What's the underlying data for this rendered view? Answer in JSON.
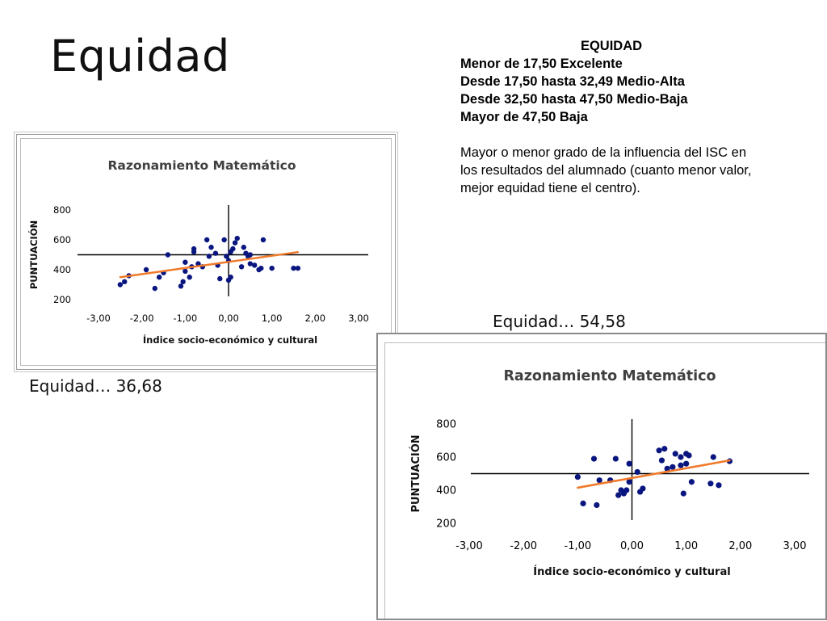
{
  "slide": {
    "title": "Equidad"
  },
  "legend": {
    "title": "EQUIDAD",
    "lines": [
      "Menor de 17,50 Excelente",
      "Desde 17,50 hasta 32,49 Medio-Alta",
      "Desde 32,50 hasta 47,50 Medio-Baja",
      "Mayor de 47,50 Baja"
    ],
    "note": "Mayor o menor grado de la influencia del ISC en los resultados del alumnado (cuanto menor valor, mejor equidad tiene el centro)."
  },
  "results": {
    "chart1_label": "Equidad…  36,68",
    "chart2_label": "Equidad… 54,58"
  },
  "colors": {
    "points": "#0a1680",
    "trendline": "#f07a2a",
    "axis": "#000000"
  },
  "chart_data": [
    {
      "type": "scatter",
      "title": "Razonamiento Matemático",
      "xlabel": "Índice socio-económico y cultural",
      "ylabel": "PUNTUACIÓN",
      "xlim": [
        -3,
        3
      ],
      "ylim": [
        200,
        800
      ],
      "x_ticks": [
        "-3,00",
        "-2,00",
        "-1,00",
        "0,00",
        "1,00",
        "2,00",
        "3,00"
      ],
      "y_ticks": [
        "200",
        "400",
        "600",
        "800"
      ],
      "x_axis_crosses_y_at": 500,
      "trendline": {
        "x": [
          -2.5,
          1.6
        ],
        "y": [
          350,
          518
        ]
      },
      "points": [
        [
          -2.5,
          300
        ],
        [
          -2.4,
          320
        ],
        [
          -2.3,
          360
        ],
        [
          -1.9,
          400
        ],
        [
          -1.7,
          275
        ],
        [
          -1.6,
          350
        ],
        [
          -1.5,
          380
        ],
        [
          -1.4,
          500
        ],
        [
          -1.1,
          290
        ],
        [
          -1.05,
          320
        ],
        [
          -1.0,
          450
        ],
        [
          -1.0,
          390
        ],
        [
          -0.9,
          350
        ],
        [
          -0.85,
          420
        ],
        [
          -0.8,
          520
        ],
        [
          -0.8,
          540
        ],
        [
          -0.7,
          440
        ],
        [
          -0.6,
          420
        ],
        [
          -0.5,
          600
        ],
        [
          -0.45,
          490
        ],
        [
          -0.4,
          550
        ],
        [
          -0.3,
          510
        ],
        [
          -0.25,
          430
        ],
        [
          -0.2,
          340
        ],
        [
          -0.1,
          600
        ],
        [
          -0.05,
          490
        ],
        [
          0.0,
          330
        ],
        [
          0.0,
          460
        ],
        [
          0.05,
          350
        ],
        [
          0.05,
          520
        ],
        [
          0.1,
          540
        ],
        [
          0.15,
          580
        ],
        [
          0.2,
          610
        ],
        [
          0.3,
          420
        ],
        [
          0.35,
          550
        ],
        [
          0.4,
          510
        ],
        [
          0.45,
          490
        ],
        [
          0.5,
          440
        ],
        [
          0.5,
          500
        ],
        [
          0.6,
          430
        ],
        [
          0.7,
          400
        ],
        [
          0.75,
          410
        ],
        [
          0.8,
          600
        ],
        [
          1.0,
          410
        ],
        [
          1.5,
          410
        ],
        [
          1.6,
          410
        ]
      ]
    },
    {
      "type": "scatter",
      "title": "Razonamiento Matemático",
      "xlabel": "Índice socio-económico y cultural",
      "ylabel": "PUNTUACIÓN",
      "xlim": [
        -3,
        3
      ],
      "ylim": [
        200,
        800
      ],
      "x_ticks": [
        "-3,00",
        "-2,00",
        "-1,00",
        "0,00",
        "1,00",
        "2,00",
        "3,00"
      ],
      "y_ticks": [
        "200",
        "400",
        "600",
        "800"
      ],
      "x_axis_crosses_y_at": 500,
      "trendline": {
        "x": [
          -1.0,
          1.8
        ],
        "y": [
          415,
          580
        ]
      },
      "points": [
        [
          -1.0,
          480
        ],
        [
          -0.9,
          320
        ],
        [
          -0.7,
          590
        ],
        [
          -0.65,
          310
        ],
        [
          -0.6,
          460
        ],
        [
          -0.4,
          460
        ],
        [
          -0.3,
          590
        ],
        [
          -0.25,
          370
        ],
        [
          -0.2,
          400
        ],
        [
          -0.15,
          380
        ],
        [
          -0.1,
          400
        ],
        [
          -0.05,
          450
        ],
        [
          -0.05,
          560
        ],
        [
          0.1,
          510
        ],
        [
          0.15,
          390
        ],
        [
          0.2,
          410
        ],
        [
          0.5,
          640
        ],
        [
          0.55,
          580
        ],
        [
          0.6,
          650
        ],
        [
          0.65,
          530
        ],
        [
          0.75,
          540
        ],
        [
          0.8,
          620
        ],
        [
          0.9,
          600
        ],
        [
          0.9,
          550
        ],
        [
          0.95,
          380
        ],
        [
          1.0,
          560
        ],
        [
          1.0,
          620
        ],
        [
          1.05,
          610
        ],
        [
          1.1,
          450
        ],
        [
          1.45,
          440
        ],
        [
          1.5,
          600
        ],
        [
          1.6,
          430
        ],
        [
          1.8,
          575
        ]
      ]
    }
  ]
}
